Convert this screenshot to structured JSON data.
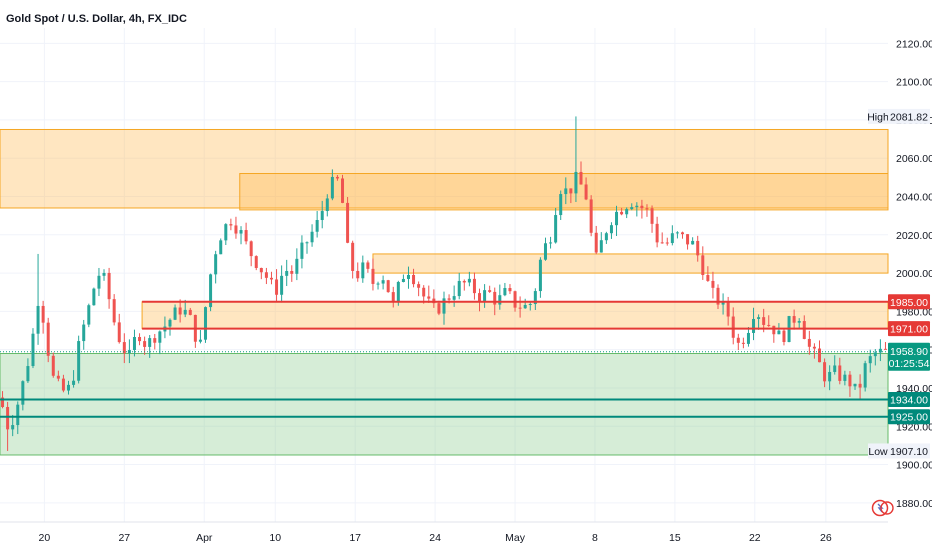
{
  "header": {
    "title": "Gold Spot / U.S. Dollar, 4h, FX_IDC"
  },
  "colors": {
    "up": "#26a69a",
    "down": "#ef5350",
    "supply_zone": "#ffb74d",
    "demand_zone": "#81c784",
    "resistance_line": "#e53935",
    "support_line": "#00897b",
    "current_price": "#089981"
  },
  "logo": {
    "icon": "tradingview-logo-icon"
  },
  "chart_data": {
    "type": "candlestick",
    "title": "Gold Spot / U.S. Dollar, 4h, FX_IDC",
    "ylim": [
      1870,
      2128
    ],
    "y_ticks": [
      1880,
      1900,
      1920,
      1940,
      1960,
      1980,
      2000,
      2020,
      2040,
      2060,
      2080,
      2100,
      2120
    ],
    "y_tick_labels": [
      "1880.00",
      "1900.00",
      "1920.00",
      "1940.00",
      "1960.00",
      "1980.00",
      "2000.00",
      "2020.00",
      "2040.00",
      "2060.00",
      "2080.00",
      "2100.00",
      "2120.00"
    ],
    "x_tick_labels": [
      "20",
      "27",
      "Apr",
      "10",
      "17",
      "24",
      "May",
      "8",
      "15",
      "22",
      "26"
    ],
    "x_tick_positions": [
      0.05,
      0.14,
      0.23,
      0.31,
      0.4,
      0.49,
      0.58,
      0.67,
      0.76,
      0.85,
      0.93
    ],
    "series": [
      {
        "kind": "close_path",
        "points": [
          [
            0.0,
            1935
          ],
          [
            0.01,
            1918
          ],
          [
            0.02,
            1932
          ],
          [
            0.03,
            1950
          ],
          [
            0.04,
            1975
          ],
          [
            0.045,
            1995
          ],
          [
            0.05,
            1970
          ],
          [
            0.06,
            1945
          ],
          [
            0.07,
            1938
          ],
          [
            0.08,
            1940
          ],
          [
            0.09,
            1965
          ],
          [
            0.1,
            1982
          ],
          [
            0.11,
            2000
          ],
          [
            0.12,
            1995
          ],
          [
            0.125,
            1980
          ],
          [
            0.135,
            1965
          ],
          [
            0.145,
            1955
          ],
          [
            0.155,
            1970
          ],
          [
            0.165,
            1962
          ],
          [
            0.175,
            1968
          ],
          [
            0.185,
            1972
          ],
          [
            0.195,
            1978
          ],
          [
            0.205,
            1982
          ],
          [
            0.215,
            1975
          ],
          [
            0.225,
            1960
          ],
          [
            0.23,
            1978
          ],
          [
            0.24,
            2008
          ],
          [
            0.25,
            2022
          ],
          [
            0.26,
            2028
          ],
          [
            0.27,
            2022
          ],
          [
            0.28,
            2012
          ],
          [
            0.29,
            2005
          ],
          [
            0.3,
            1998
          ],
          [
            0.31,
            1990
          ],
          [
            0.32,
            2002
          ],
          [
            0.33,
            2000
          ],
          [
            0.34,
            2012
          ],
          [
            0.35,
            2020
          ],
          [
            0.36,
            2028
          ],
          [
            0.37,
            2045
          ],
          [
            0.38,
            2048
          ],
          [
            0.385,
            2040
          ],
          [
            0.39,
            2015
          ],
          [
            0.395,
            2005
          ],
          [
            0.4,
            1998
          ],
          [
            0.41,
            2003
          ],
          [
            0.42,
            1995
          ],
          [
            0.43,
            2000
          ],
          [
            0.44,
            1988
          ],
          [
            0.445,
            1980
          ],
          [
            0.45,
            1997
          ],
          [
            0.46,
            2002
          ],
          [
            0.47,
            1995
          ],
          [
            0.48,
            1985
          ],
          [
            0.49,
            1980
          ],
          [
            0.5,
            1985
          ],
          [
            0.51,
            1990
          ],
          [
            0.52,
            1995
          ],
          [
            0.53,
            1993
          ],
          [
            0.54,
            1988
          ],
          [
            0.55,
            1990
          ],
          [
            0.56,
            1985
          ],
          [
            0.57,
            1990
          ],
          [
            0.58,
            1984
          ],
          [
            0.59,
            1982
          ],
          [
            0.6,
            1985
          ],
          [
            0.61,
            2010
          ],
          [
            0.62,
            2020
          ],
          [
            0.63,
            2045
          ],
          [
            0.64,
            2042
          ],
          [
            0.65,
            2050
          ],
          [
            0.66,
            2040
          ],
          [
            0.67,
            2005
          ],
          [
            0.68,
            2020
          ],
          [
            0.69,
            2030
          ],
          [
            0.7,
            2034
          ],
          [
            0.71,
            2038
          ],
          [
            0.72,
            2035
          ],
          [
            0.73,
            2032
          ],
          [
            0.74,
            2018
          ],
          [
            0.75,
            2015
          ],
          [
            0.76,
            2020
          ],
          [
            0.77,
            2018
          ],
          [
            0.78,
            2015
          ],
          [
            0.79,
            2005
          ],
          [
            0.8,
            1990
          ],
          [
            0.81,
            1985
          ],
          [
            0.82,
            1978
          ],
          [
            0.83,
            1962
          ],
          [
            0.84,
            1968
          ],
          [
            0.85,
            1982
          ],
          [
            0.86,
            1975
          ],
          [
            0.87,
            1972
          ],
          [
            0.88,
            1965
          ],
          [
            0.89,
            1975
          ],
          [
            0.9,
            1978
          ],
          [
            0.91,
            1962
          ],
          [
            0.92,
            1955
          ],
          [
            0.93,
            1945
          ],
          [
            0.94,
            1948
          ],
          [
            0.95,
            1945
          ],
          [
            0.96,
            1942
          ],
          [
            0.965,
            1936
          ],
          [
            0.975,
            1952
          ],
          [
            0.985,
            1958
          ],
          [
            1.0,
            1959
          ]
        ]
      }
    ],
    "zones": [
      {
        "kind": "supply",
        "x_from": 0.0,
        "x_to": 1.0,
        "low": 2034,
        "high": 2075
      },
      {
        "kind": "supply",
        "x_from": 0.27,
        "x_to": 1.0,
        "low": 2033,
        "high": 2052
      },
      {
        "kind": "supply",
        "x_from": 0.42,
        "x_to": 1.0,
        "low": 2000,
        "high": 2010
      },
      {
        "kind": "supply",
        "x_from": 0.16,
        "x_to": 1.0,
        "low": 1971,
        "high": 1985
      },
      {
        "kind": "demand",
        "x_from": 0.0,
        "x_to": 1.0,
        "low": 1905,
        "high": 1958
      }
    ],
    "levels": [
      {
        "kind": "resistance",
        "price": 1985,
        "label": "1985.00",
        "x_from": 0.16
      },
      {
        "kind": "resistance",
        "price": 1971,
        "label": "1971.00",
        "x_from": 0.16
      },
      {
        "kind": "support",
        "price": 1934,
        "label": "1934.00",
        "x_from": 0.0
      },
      {
        "kind": "support",
        "price": 1925,
        "label": "1925.00",
        "x_from": 0.0
      }
    ],
    "high": {
      "tag": "High",
      "price": 2081.82,
      "label": "2081.82"
    },
    "low": {
      "tag": "Low",
      "price": 1907.1,
      "label": "1907.10"
    },
    "current": {
      "price": 1958.9,
      "label": "1958.90",
      "countdown": "01:25:54"
    }
  }
}
